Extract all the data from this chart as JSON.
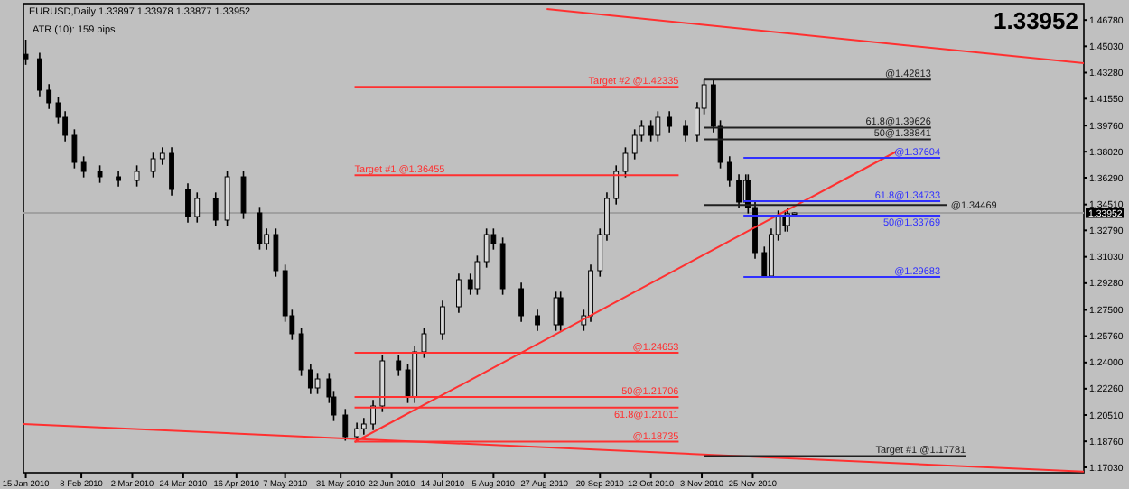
{
  "chart_data": {
    "type": "candlestick",
    "title": "EURUSD,Daily  1.33897 1.33978 1.33877 1.33952",
    "annotations": [
      "ATR (10):  159 pips",
      "1.33952"
    ],
    "xlim": [
      "2010-01-14",
      "2011-04-17"
    ],
    "xticks": [
      {
        "value": "2010-01-15",
        "label": "15 Jan 2010"
      },
      {
        "value": "2010-02-08",
        "label": "8 Feb 2010"
      },
      {
        "value": "2010-03-02",
        "label": "2 Mar 2010"
      },
      {
        "value": "2010-03-24",
        "label": "24 Mar 2010"
      },
      {
        "value": "2010-04-16",
        "label": "16 Apr 2010"
      },
      {
        "value": "2010-05-07",
        "label": "7 May 2010"
      },
      {
        "value": "2010-05-31",
        "label": "31 May 2010"
      },
      {
        "value": "2010-06-22",
        "label": "22 Jun 2010"
      },
      {
        "value": "2010-07-14",
        "label": "14 Jul 2010"
      },
      {
        "value": "2010-08-05",
        "label": "5 Aug 2010"
      },
      {
        "value": "2010-08-27",
        "label": "27 Aug 2010"
      },
      {
        "value": "2010-09-20",
        "label": "20 Sep 2010"
      },
      {
        "value": "2010-10-12",
        "label": "12 Oct 2010"
      },
      {
        "value": "2010-11-03",
        "label": "3 Nov 2010"
      },
      {
        "value": "2010-11-25",
        "label": "25 Nov 2010"
      }
    ],
    "ylim": [
      1.1667,
      1.4787
    ],
    "yticks": [
      {
        "value": 1.1703,
        "label": "1.17030"
      },
      {
        "value": 1.1876,
        "label": "1.18760"
      },
      {
        "value": 1.2051,
        "label": "1.20510"
      },
      {
        "value": 1.2226,
        "label": "1.22260"
      },
      {
        "value": 1.24,
        "label": "1.24000"
      },
      {
        "value": 1.2576,
        "label": "1.25760"
      },
      {
        "value": 1.275,
        "label": "1.27500"
      },
      {
        "value": 1.2928,
        "label": "1.29280"
      },
      {
        "value": 1.3103,
        "label": "1.31030"
      },
      {
        "value": 1.3279,
        "label": "1.32790"
      },
      {
        "value": 1.3451,
        "label": "1.34510"
      },
      {
        "value": 1.3629,
        "label": "1.36290"
      },
      {
        "value": 1.3802,
        "label": "1.38020"
      },
      {
        "value": 1.3976,
        "label": "1.39760"
      },
      {
        "value": 1.4155,
        "label": "1.41550"
      },
      {
        "value": 1.4328,
        "label": "1.43280"
      },
      {
        "value": 1.4503,
        "label": "1.45030"
      },
      {
        "value": 1.4678,
        "label": "1.46780"
      }
    ],
    "grid": false,
    "ref_lines": [
      {
        "axis": "y",
        "value": 1.33952,
        "label": "1.33952",
        "color": "#a0a0a0"
      }
    ],
    "x": [
      "2010-01-15",
      "2010-01-21",
      "2010-01-25",
      "2010-01-29",
      "2010-02-01",
      "2010-02-05",
      "2010-02-09",
      "2010-02-16",
      "2010-02-24",
      "2010-03-04",
      "2010-03-11",
      "2010-03-15",
      "2010-03-19",
      "2010-03-26",
      "2010-03-30",
      "2010-04-07",
      "2010-04-12",
      "2010-04-19",
      "2010-04-26",
      "2010-04-29",
      "2010-05-03",
      "2010-05-07",
      "2010-05-10",
      "2010-05-14",
      "2010-05-18",
      "2010-05-21",
      "2010-05-26",
      "2010-05-28",
      "2010-06-02",
      "2010-06-07",
      "2010-06-10",
      "2010-06-14",
      "2010-06-18",
      "2010-06-25",
      "2010-06-29",
      "2010-07-02",
      "2010-07-06",
      "2010-07-14",
      "2010-07-21",
      "2010-07-26",
      "2010-07-29",
      "2010-08-02",
      "2010-08-05",
      "2010-08-09",
      "2010-08-17",
      "2010-08-24",
      "2010-09-01",
      "2010-09-03",
      "2010-09-13",
      "2010-09-16",
      "2010-09-20",
      "2010-09-23",
      "2010-09-27",
      "2010-10-01",
      "2010-10-05",
      "2010-10-08",
      "2010-10-12",
      "2010-10-15",
      "2010-10-20",
      "2010-10-27",
      "2010-11-01",
      "2010-11-04",
      "2010-11-08",
      "2010-11-11",
      "2010-11-15",
      "2010-11-19",
      "2010-11-22",
      "2010-11-23",
      "2010-11-26",
      "2010-11-30",
      "2010-12-03",
      "2010-12-06",
      "2010-12-09",
      "2010-12-10",
      "2010-12-13"
    ],
    "ohlc": [
      [
        1.445,
        1.4547,
        1.438,
        1.442
      ],
      [
        1.442,
        1.446,
        1.4171,
        1.4211
      ],
      [
        1.4211,
        1.4251,
        1.4087,
        1.4127
      ],
      [
        1.4127,
        1.4167,
        1.3991,
        1.4031
      ],
      [
        1.4031,
        1.4071,
        1.3871,
        1.3911
      ],
      [
        1.3911,
        1.3951,
        1.3691,
        1.3731
      ],
      [
        1.3731,
        1.3771,
        1.3631,
        1.3671
      ],
      [
        1.3671,
        1.3711,
        1.3595,
        1.3635
      ],
      [
        1.3635,
        1.3675,
        1.3571,
        1.3611
      ],
      [
        1.3611,
        1.3711,
        1.3571,
        1.3671
      ],
      [
        1.3671,
        1.3795,
        1.3631,
        1.3755
      ],
      [
        1.3755,
        1.3831,
        1.3715,
        1.3791
      ],
      [
        1.3791,
        1.3831,
        1.3511,
        1.3551
      ],
      [
        1.3551,
        1.3591,
        1.3331,
        1.3371
      ],
      [
        1.3371,
        1.3531,
        1.3331,
        1.3491
      ],
      [
        1.3491,
        1.3531,
        1.3307,
        1.3347
      ],
      [
        1.3347,
        1.3675,
        1.3307,
        1.3635
      ],
      [
        1.3635,
        1.3675,
        1.3355,
        1.3395
      ],
      [
        1.3395,
        1.3435,
        1.3151,
        1.3191
      ],
      [
        1.3191,
        1.3291,
        1.3151,
        1.3251
      ],
      [
        1.3251,
        1.3291,
        1.2971,
        1.3011
      ],
      [
        1.3011,
        1.3051,
        1.2671,
        1.2711
      ],
      [
        1.2711,
        1.2751,
        1.2551,
        1.2591
      ],
      [
        1.2591,
        1.2631,
        1.2311,
        1.2351
      ],
      [
        1.2351,
        1.2391,
        1.2191,
        1.2231
      ],
      [
        1.2231,
        1.2331,
        1.2191,
        1.2291
      ],
      [
        1.2291,
        1.2331,
        1.2131,
        1.2171
      ],
      [
        1.2171,
        1.2211,
        1.2011,
        1.2051
      ],
      [
        1.2051,
        1.2091,
        1.188,
        1.1907
      ],
      [
        1.1907,
        1.2,
        1.1874,
        1.196
      ],
      [
        1.196,
        1.2031,
        1.192,
        1.1991
      ],
      [
        1.1991,
        1.2151,
        1.1951,
        1.2111
      ],
      [
        1.2111,
        1.2451,
        1.2071,
        1.2411
      ],
      [
        1.2411,
        1.2451,
        1.2311,
        1.2351
      ],
      [
        1.2351,
        1.2391,
        1.2131,
        1.2171
      ],
      [
        1.2171,
        1.2511,
        1.2131,
        1.2471
      ],
      [
        1.2471,
        1.2631,
        1.2431,
        1.2591
      ],
      [
        1.2591,
        1.2811,
        1.2551,
        1.2771
      ],
      [
        1.2771,
        1.2991,
        1.2731,
        1.2951
      ],
      [
        1.2951,
        1.2991,
        1.2851,
        1.2891
      ],
      [
        1.2891,
        1.3111,
        1.2851,
        1.3071
      ],
      [
        1.3071,
        1.3291,
        1.3031,
        1.3251
      ],
      [
        1.3251,
        1.3291,
        1.3151,
        1.3191
      ],
      [
        1.3191,
        1.3231,
        1.2851,
        1.2891
      ],
      [
        1.2891,
        1.2931,
        1.2671,
        1.2711
      ],
      [
        1.2711,
        1.2751,
        1.2611,
        1.2651
      ],
      [
        1.2651,
        1.2871,
        1.2611,
        1.2831
      ],
      [
        1.2831,
        1.2871,
        1.2611,
        1.2651
      ],
      [
        1.2651,
        1.2751,
        1.2611,
        1.2711
      ],
      [
        1.2711,
        1.3051,
        1.2671,
        1.3011
      ],
      [
        1.3011,
        1.3291,
        1.2971,
        1.3251
      ],
      [
        1.3251,
        1.3531,
        1.3211,
        1.3491
      ],
      [
        1.3491,
        1.3711,
        1.3451,
        1.3671
      ],
      [
        1.3671,
        1.3831,
        1.3631,
        1.3791
      ],
      [
        1.3791,
        1.3951,
        1.3751,
        1.3911
      ],
      [
        1.3911,
        1.4011,
        1.3871,
        1.3971
      ],
      [
        1.3971,
        1.4011,
        1.3871,
        1.3911
      ],
      [
        1.3911,
        1.4071,
        1.3871,
        1.4031
      ],
      [
        1.4031,
        1.4071,
        1.3931,
        1.3971
      ],
      [
        1.3971,
        1.4011,
        1.3871,
        1.3911
      ],
      [
        1.3911,
        1.4131,
        1.3871,
        1.4091
      ],
      [
        1.4091,
        1.4281,
        1.4051,
        1.4247
      ],
      [
        1.4247,
        1.4281,
        1.3931,
        1.3971
      ],
      [
        1.3971,
        1.4011,
        1.3691,
        1.3731
      ],
      [
        1.3731,
        1.3771,
        1.3571,
        1.3611
      ],
      [
        1.3611,
        1.3651,
        1.3427,
        1.3467
      ],
      [
        1.3467,
        1.3651,
        1.3427,
        1.3611
      ],
      [
        1.3611,
        1.3651,
        1.3391,
        1.3431
      ],
      [
        1.3431,
        1.3471,
        1.3091,
        1.3131
      ],
      [
        1.3131,
        1.3171,
        1.2968,
        1.2975
      ],
      [
        1.2975,
        1.3291,
        1.297,
        1.3251
      ],
      [
        1.3251,
        1.3411,
        1.3211,
        1.3371
      ],
      [
        1.3371,
        1.3411,
        1.3271,
        1.3311
      ],
      [
        1.3311,
        1.343,
        1.3271,
        1.339
      ],
      [
        1.33897,
        1.33978,
        1.33877,
        1.33952
      ]
    ],
    "color": "#000000",
    "series": [
      {
        "type": "line",
        "color": "#ff3030",
        "x": [
          "2010-08-28",
          "2011-04-17"
        ],
        "values": [
          1.4751,
          1.4391
        ]
      },
      {
        "type": "line",
        "color": "#ff3030",
        "x": [
          "2010-01-14",
          "2011-04-17"
        ],
        "values": [
          1.1991,
          1.1675
        ]
      },
      {
        "type": "line",
        "color": "#ff3030",
        "x": [
          "2010-06-06",
          "2011-01-26"
        ],
        "values": [
          1.1871,
          1.3803
        ]
      },
      {
        "type": "line",
        "name": "Target #2  @1.42335",
        "color": "#ff3030",
        "x": [
          "2010-06-06",
          "2010-10-24"
        ],
        "values": [
          1.42335,
          1.42335
        ]
      },
      {
        "type": "line",
        "name": "Target #1  @1.36455",
        "color": "#ff3030",
        "x": [
          "2010-06-06",
          "2010-10-24"
        ],
        "values": [
          1.36455,
          1.36455
        ]
      },
      {
        "type": "line",
        "name": "@1.24653",
        "color": "#ff3030",
        "x": [
          "2010-06-06",
          "2010-10-24"
        ],
        "values": [
          1.24653,
          1.24653
        ]
      },
      {
        "type": "line",
        "name": "50@1.21706",
        "color": "#ff3030",
        "x": [
          "2010-06-06",
          "2010-10-24"
        ],
        "values": [
          1.21706,
          1.21706
        ]
      },
      {
        "type": "line",
        "name": "61.8@1.21011",
        "color": "#ff3030",
        "x": [
          "2010-06-06",
          "2010-10-24"
        ],
        "values": [
          1.21011,
          1.21011
        ]
      },
      {
        "type": "line",
        "name": "@1.18735",
        "color": "#ff3030",
        "x": [
          "2010-06-06",
          "2010-10-24"
        ],
        "values": [
          1.18735,
          1.18735
        ]
      },
      {
        "type": "line",
        "name": "@1.42813",
        "color": "#202020",
        "x": [
          "2010-11-04",
          "2011-02-10"
        ],
        "values": [
          1.42813,
          1.42813
        ]
      },
      {
        "type": "line",
        "name": "61.8@1.39626",
        "color": "#202020",
        "x": [
          "2010-11-04",
          "2011-02-10"
        ],
        "values": [
          1.39626,
          1.39626
        ]
      },
      {
        "type": "line",
        "name": "50@1.38841",
        "color": "#202020",
        "x": [
          "2010-11-04",
          "2011-02-10"
        ],
        "values": [
          1.38841,
          1.38841
        ]
      },
      {
        "type": "line",
        "name": "@1.34469",
        "color": "#202020",
        "x": [
          "2010-11-04",
          "2011-02-17"
        ],
        "values": [
          1.34469,
          1.34469
        ]
      },
      {
        "type": "line",
        "name": "@1.37604",
        "color": "#3030ff",
        "x": [
          "2010-11-21",
          "2011-02-14"
        ],
        "values": [
          1.37604,
          1.37604
        ]
      },
      {
        "type": "line",
        "name": "61.8@1.34733",
        "color": "#3030ff",
        "x": [
          "2010-11-21",
          "2011-02-14"
        ],
        "values": [
          1.34733,
          1.34733
        ]
      },
      {
        "type": "line",
        "name": "50@1.33769",
        "color": "#3030ff",
        "x": [
          "2010-11-21",
          "2011-02-14"
        ],
        "values": [
          1.33769,
          1.33769
        ]
      },
      {
        "type": "line",
        "name": "@1.29683",
        "color": "#3030ff",
        "x": [
          "2010-11-21",
          "2011-02-14"
        ],
        "values": [
          1.29683,
          1.29683
        ]
      },
      {
        "type": "line",
        "name": "Target #1  @1.17781",
        "color": "#202020",
        "x": [
          "2010-11-04",
          "2011-02-25"
        ],
        "values": [
          1.17781,
          1.17781
        ]
      }
    ]
  }
}
